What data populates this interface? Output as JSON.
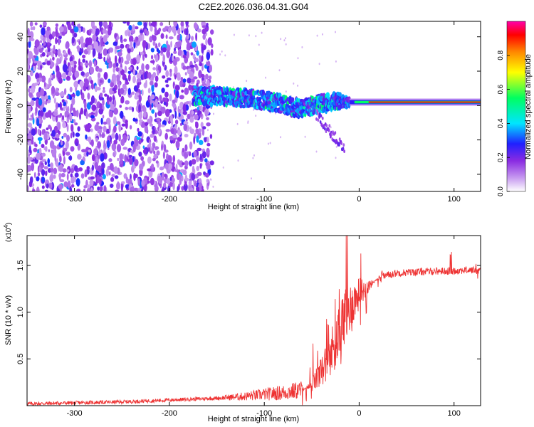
{
  "chart_data": [
    {
      "type": "heatmap",
      "title": "C2E2.2026.036.04.31.G04",
      "xlabel": "Height of straight line (km)",
      "ylabel": "Frequency (Hz)",
      "xlim": [
        -350,
        128
      ],
      "ylim": [
        -50,
        49
      ],
      "xticks": [
        -300,
        -200,
        -100,
        0,
        100
      ],
      "xtick_labels": [
        "-300",
        "-200",
        "-100",
        "0",
        "100"
      ],
      "yticks": [
        -40,
        -20,
        0,
        20,
        40
      ],
      "ytick_labels": [
        "-40",
        "-20",
        "0",
        "20",
        "40"
      ],
      "colorbar": {
        "label": "Normalized spectral amplitude",
        "range": [
          0,
          1
        ],
        "ticks": [
          0.0,
          0.2,
          0.4,
          0.6,
          0.8
        ],
        "tick_labels": [
          "0.0",
          "0.2",
          "0.4",
          "0.6",
          "0.8"
        ],
        "colormap": [
          "#ffffff",
          "#c79af0",
          "#8a2be2",
          "#2020ff",
          "#00e5ff",
          "#00ff60",
          "#ffff00",
          "#ff8800",
          "#ff0000",
          "#ff00aa"
        ]
      },
      "features": {
        "noise_region_x": [
          -350,
          -155
        ],
        "signal_band_x": [
          -175,
          128
        ],
        "signal_center_hz": [
          [
            -175,
            6
          ],
          [
            -130,
            5
          ],
          [
            -90,
            2
          ],
          [
            -60,
            -2
          ],
          [
            -30,
            2
          ],
          [
            0,
            2
          ],
          [
            128,
            2
          ]
        ]
      }
    },
    {
      "type": "line",
      "xlabel": "Height of straight line (km)",
      "ylabel": "SNR (10 * v/v)",
      "y_multiplier_label": "(x10",
      "y_multiplier_exp": "4",
      "y_multiplier_close": ")",
      "xlim": [
        -350,
        128
      ],
      "ylim": [
        0,
        1.82
      ],
      "xticks": [
        -300,
        -200,
        -100,
        0,
        100
      ],
      "xtick_labels": [
        "-300",
        "-200",
        "-100",
        "0",
        "100"
      ],
      "yticks": [
        0.5,
        1.0,
        1.5
      ],
      "ytick_labels": [
        "0.5",
        "1.0",
        "1.5"
      ],
      "color": "#ee3333",
      "series": [
        {
          "name": "SNR",
          "x": [
            -350,
            -300,
            -250,
            -200,
            -150,
            -120,
            -100,
            -80,
            -60,
            -50,
            -40,
            -30,
            -20,
            -10,
            0,
            10,
            20,
            30,
            40,
            60,
            80,
            100,
            110,
            128
          ],
          "y": [
            0.02,
            0.03,
            0.04,
            0.06,
            0.08,
            0.1,
            0.12,
            0.14,
            0.17,
            0.22,
            0.35,
            0.55,
            0.78,
            1.05,
            1.2,
            1.28,
            1.36,
            1.4,
            1.42,
            1.43,
            1.44,
            1.44,
            1.45,
            1.45
          ]
        }
      ]
    }
  ]
}
